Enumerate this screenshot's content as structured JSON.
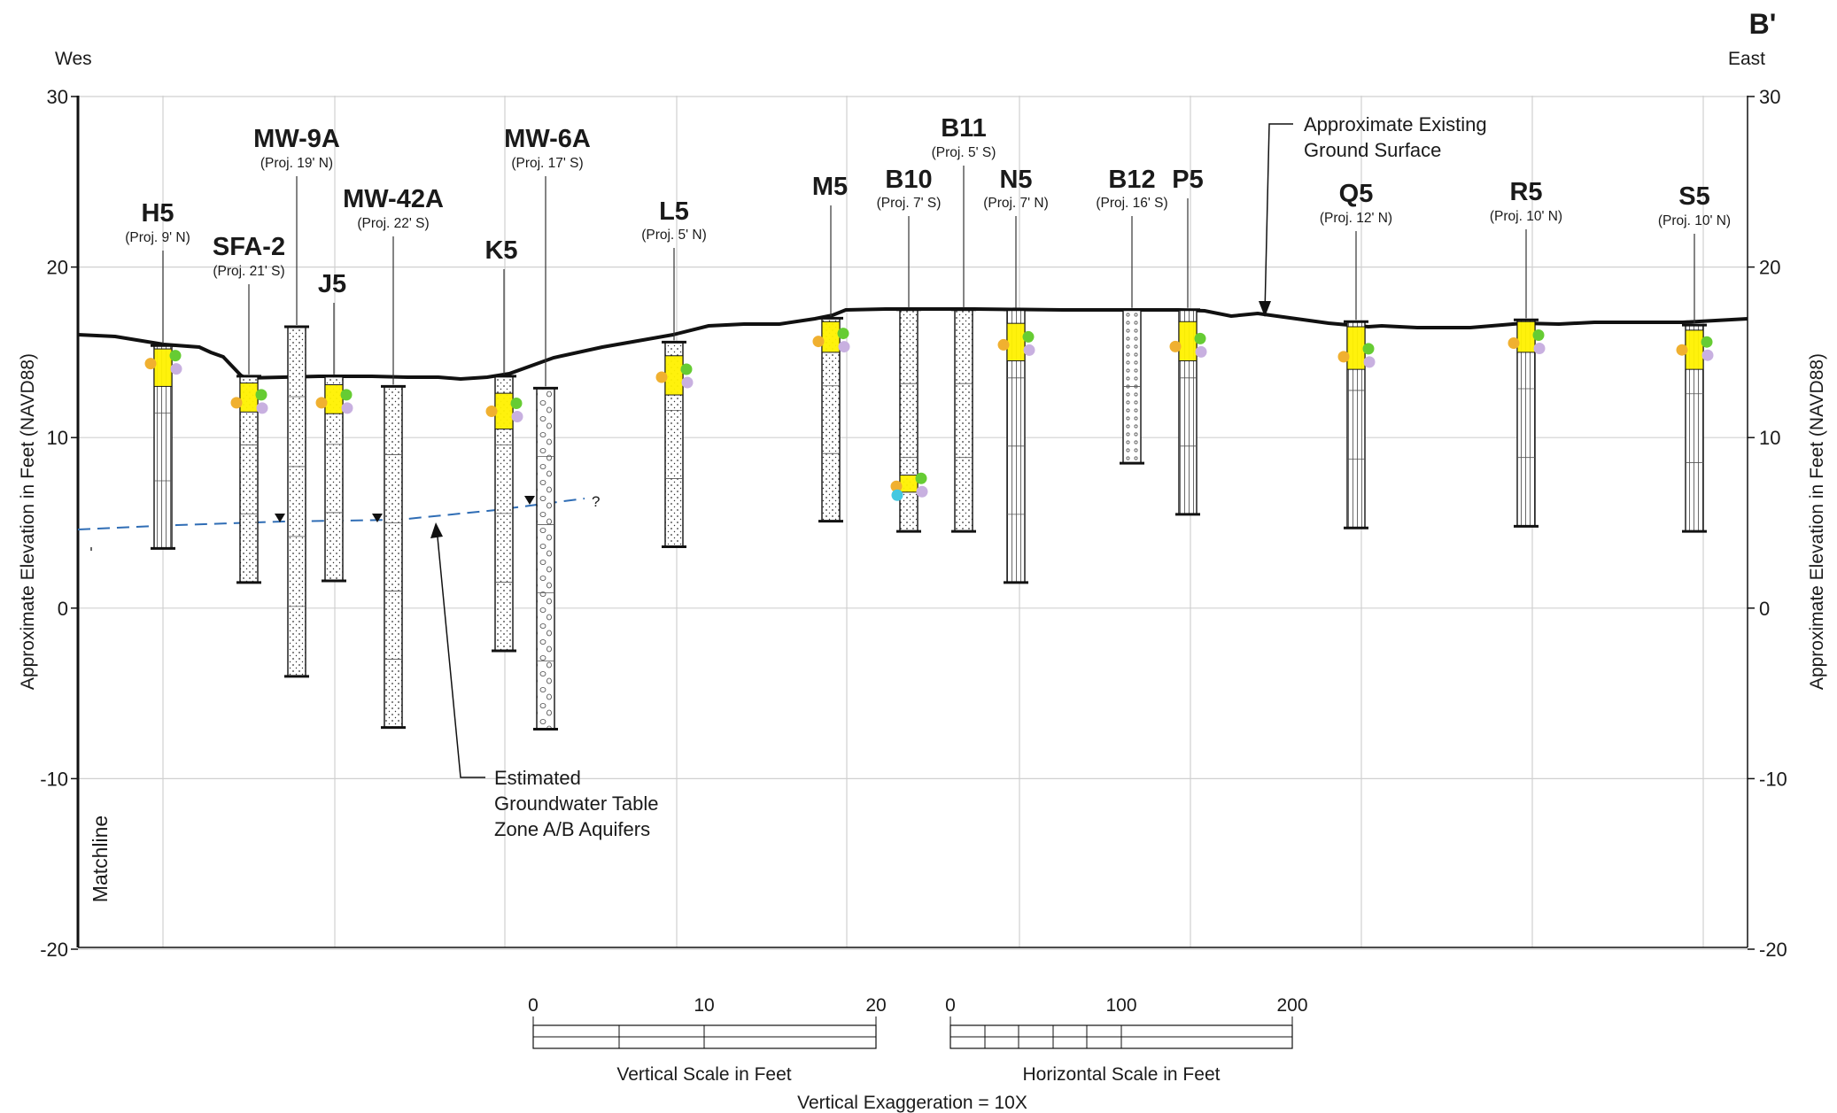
{
  "header": {
    "section_id": "B'",
    "west_label": "Wes",
    "east_label": "East"
  },
  "axes": {
    "y_label_left": "Approximate Elevation in Feet (NAVD88)",
    "y_label_right": "Approximate Elevation in Feet (NAVD88)",
    "y_ticks": [
      "30",
      "20",
      "10",
      "0",
      "-10",
      "-20"
    ],
    "ylim": [
      -20,
      30
    ],
    "grid": true
  },
  "matchline_label": "Matchline",
  "annotations": {
    "ground_surface": [
      "Approximate Existing",
      "Ground Surface"
    ],
    "groundwater": [
      "Estimated",
      "Groundwater Table",
      "Zone A/B Aquifers"
    ],
    "gw_question": "?"
  },
  "borings": [
    {
      "name": "H5",
      "proj": "(Proj. 9' N)",
      "top": 15.4,
      "bottom": 3.5
    },
    {
      "name": "SFA-2",
      "proj": "(Proj. 21' S)",
      "top": 13.6,
      "bottom": 1.5
    },
    {
      "name": "MW-9A",
      "proj": "(Proj. 19' N)",
      "top": 16.5,
      "bottom": -4.0
    },
    {
      "name": "J5",
      "proj": "",
      "top": 13.6,
      "bottom": 1.6
    },
    {
      "name": "MW-42A",
      "proj": "(Proj. 22' S)",
      "top": 13.0,
      "bottom": -7.0
    },
    {
      "name": "K5",
      "proj": "",
      "top": 13.6,
      "bottom": -2.5
    },
    {
      "name": "MW-6A",
      "proj": "(Proj. 17' S)",
      "top": 12.9,
      "bottom": -7.1
    },
    {
      "name": "L5",
      "proj": "(Proj. 5' N)",
      "top": 15.6,
      "bottom": 3.6
    },
    {
      "name": "M5",
      "proj": "",
      "top": 17.0,
      "bottom": 5.1
    },
    {
      "name": "B10",
      "proj": "(Proj. 7' S)",
      "top": 17.5,
      "bottom": 4.5
    },
    {
      "name": "B11",
      "proj": "(Proj. 5' S)",
      "top": 17.5,
      "bottom": 4.5
    },
    {
      "name": "N5",
      "proj": "(Proj. 7' N)",
      "top": 17.5,
      "bottom": 1.5
    },
    {
      "name": "B12",
      "proj": "(Proj. 16' S)",
      "top": 17.5,
      "bottom": 8.5
    },
    {
      "name": "P5",
      "proj": "",
      "top": 17.5,
      "bottom": 5.5
    },
    {
      "name": "Q5",
      "proj": "(Proj. 12' N)",
      "top": 16.8,
      "bottom": 4.7
    },
    {
      "name": "R5",
      "proj": "(Proj. 10' N)",
      "top": 16.9,
      "bottom": 4.8
    },
    {
      "name": "S5",
      "proj": "(Proj. 10' N)",
      "top": 16.6,
      "bottom": 4.5
    }
  ],
  "scales": {
    "vertical": {
      "ticks": [
        "0",
        "10",
        "20"
      ],
      "label": "Vertical Scale in Feet"
    },
    "horizontal": {
      "ticks": [
        "0",
        "100",
        "200"
      ],
      "label": "Horizontal Scale in Feet"
    },
    "exaggeration": "Vertical Exaggeration = 10X"
  },
  "colors": {
    "line": "#111111",
    "grid": "#d0d0d0",
    "groundwater": "#2f6db5",
    "sample_yellow": "#fff200",
    "dot_orange": "#f0b030",
    "dot_green": "#66cc33",
    "dot_lilac": "#c8b0e0",
    "dot_cyan": "#44c8e0"
  }
}
